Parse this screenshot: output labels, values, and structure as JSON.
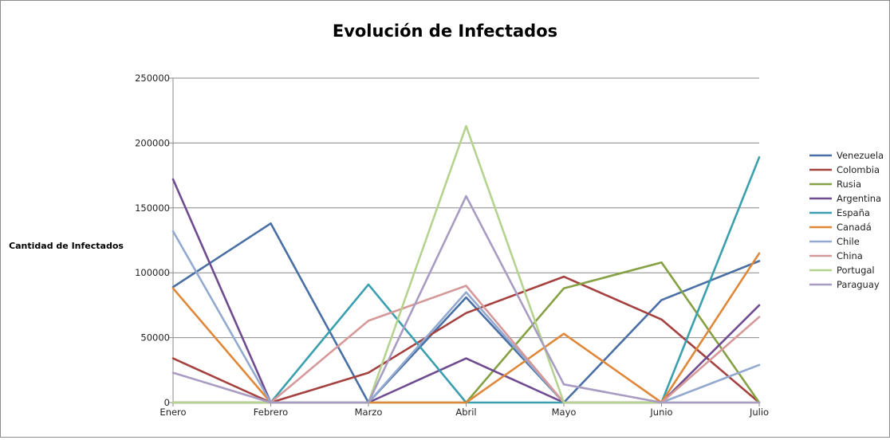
{
  "chart_data": {
    "type": "line",
    "title": "Evolución de Infectados",
    "ylabel": "Cantidad de Infectados",
    "xlabel": "",
    "categories": [
      "Enero",
      "Febrero",
      "Marzo",
      "Abril",
      "Mayo",
      "Junio",
      "Julio"
    ],
    "ylim": [
      0,
      250000
    ],
    "yticks": [
      0,
      50000,
      100000,
      150000,
      200000,
      250000
    ],
    "grid": true,
    "legend_position": "right",
    "series": [
      {
        "name": "Venezuela",
        "color": "#4a6fa5",
        "values": [
          89000,
          138000,
          0,
          81000,
          0,
          79000,
          109000
        ]
      },
      {
        "name": "Colombia",
        "color": "#a54240",
        "values": [
          34000,
          0,
          23000,
          69000,
          97000,
          64000,
          0
        ]
      },
      {
        "name": "Rusia",
        "color": "#86a044",
        "values": [
          0,
          0,
          0,
          0,
          88000,
          108000,
          0
        ]
      },
      {
        "name": "Argentina",
        "color": "#6f4b8f",
        "values": [
          172000,
          0,
          0,
          34000,
          0,
          0,
          75000
        ]
      },
      {
        "name": "España",
        "color": "#3a9fae",
        "values": [
          0,
          0,
          91000,
          0,
          0,
          0,
          189000
        ]
      },
      {
        "name": "Canadá",
        "color": "#e0883a",
        "values": [
          88000,
          0,
          0,
          0,
          53000,
          0,
          115000
        ]
      },
      {
        "name": "Chile",
        "color": "#93a9cf",
        "values": [
          132000,
          0,
          0,
          85000,
          0,
          0,
          29000
        ]
      },
      {
        "name": "China",
        "color": "#d6999a",
        "values": [
          0,
          0,
          63000,
          90000,
          0,
          0,
          66000
        ]
      },
      {
        "name": "Portugal",
        "color": "#b5d38f",
        "values": [
          0,
          0,
          0,
          213000,
          0,
          0,
          0
        ]
      },
      {
        "name": "Paraguay",
        "color": "#a89cc3",
        "values": [
          23000,
          0,
          0,
          159000,
          14000,
          0,
          0
        ]
      }
    ]
  }
}
